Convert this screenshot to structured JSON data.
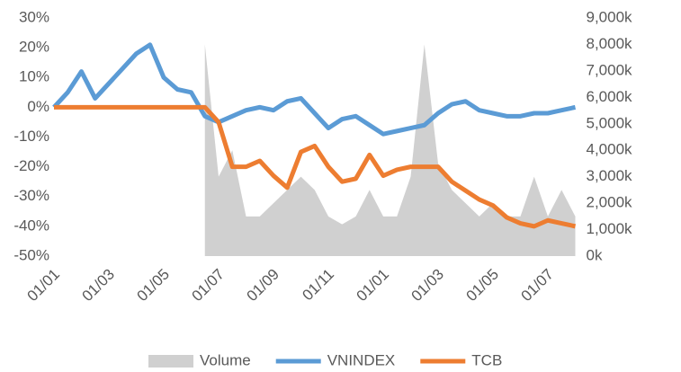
{
  "chart_data": {
    "type": "line",
    "categories": [
      "01/01",
      null,
      null,
      null,
      "01/03",
      null,
      null,
      null,
      "01/05",
      null,
      null,
      null,
      "01/07",
      null,
      null,
      null,
      "01/09",
      null,
      null,
      null,
      "01/11",
      null,
      null,
      null,
      "01/01",
      null,
      null,
      null,
      "01/03",
      null,
      null,
      null,
      "01/05",
      null,
      null,
      null,
      "01/07",
      null,
      null
    ],
    "series": [
      {
        "name": "Volume",
        "color": "#d0d0d0",
        "type": "area",
        "axis": "y2",
        "values": [
          null,
          null,
          null,
          null,
          null,
          null,
          null,
          null,
          null,
          null,
          null,
          8000,
          3000,
          4000,
          1500,
          1500,
          2000,
          2500,
          3000,
          2500,
          1500,
          1200,
          1500,
          2500,
          1500,
          1500,
          3000,
          8000,
          3500,
          2500,
          2000,
          1500,
          2000,
          1500,
          1500,
          3000,
          1500,
          2500,
          1500
        ]
      },
      {
        "name": "VNINDEX",
        "color": "#5b9bd5",
        "type": "line",
        "values": [
          0,
          5,
          12,
          3,
          8,
          13,
          18,
          21,
          10,
          6,
          5,
          -3,
          -5,
          -3,
          -1,
          0,
          -1,
          2,
          3,
          -2,
          -7,
          -4,
          -3,
          -6,
          -9,
          -8,
          -7,
          -6,
          -2,
          1,
          2,
          -1,
          -2,
          -3,
          -3,
          -2,
          -2,
          -1,
          0
        ]
      },
      {
        "name": "TCB",
        "color": "#ed7d31",
        "type": "line",
        "values": [
          0,
          0,
          0,
          0,
          0,
          0,
          0,
          0,
          0,
          0,
          0,
          0,
          -5,
          -20,
          -20,
          -18,
          -23,
          -27,
          -15,
          -13,
          -20,
          -25,
          -24,
          -16,
          -23,
          -21,
          -20,
          -20,
          -20,
          -25,
          -28,
          -31,
          -33,
          -37,
          -39,
          -40,
          -38,
          -39,
          -40
        ]
      }
    ],
    "ylim": [
      -50,
      30
    ],
    "yticks": [
      {
        "value": -50,
        "label": "-50%"
      },
      {
        "value": -40,
        "label": "-40%"
      },
      {
        "value": -30,
        "label": "-30%"
      },
      {
        "value": -20,
        "label": "-20%"
      },
      {
        "value": -10,
        "label": "-10%"
      },
      {
        "value": 0,
        "label": "0%"
      },
      {
        "value": 10,
        "label": "10%"
      },
      {
        "value": 20,
        "label": "20%"
      },
      {
        "value": 30,
        "label": "30%"
      }
    ],
    "y2lim": [
      0,
      9000
    ],
    "y2ticks": [
      {
        "value": 0,
        "label": "0k"
      },
      {
        "value": 1000,
        "label": "1,000k"
      },
      {
        "value": 2000,
        "label": "2,000k"
      },
      {
        "value": 3000,
        "label": "3,000k"
      },
      {
        "value": 4000,
        "label": "4,000k"
      },
      {
        "value": 5000,
        "label": "5,000k"
      },
      {
        "value": 6000,
        "label": "6,000k"
      },
      {
        "value": 7000,
        "label": "7,000k"
      },
      {
        "value": 8000,
        "label": "8,000k"
      },
      {
        "value": 9000,
        "label": "9,000k"
      }
    ],
    "grid": false,
    "legend": "bottom"
  }
}
